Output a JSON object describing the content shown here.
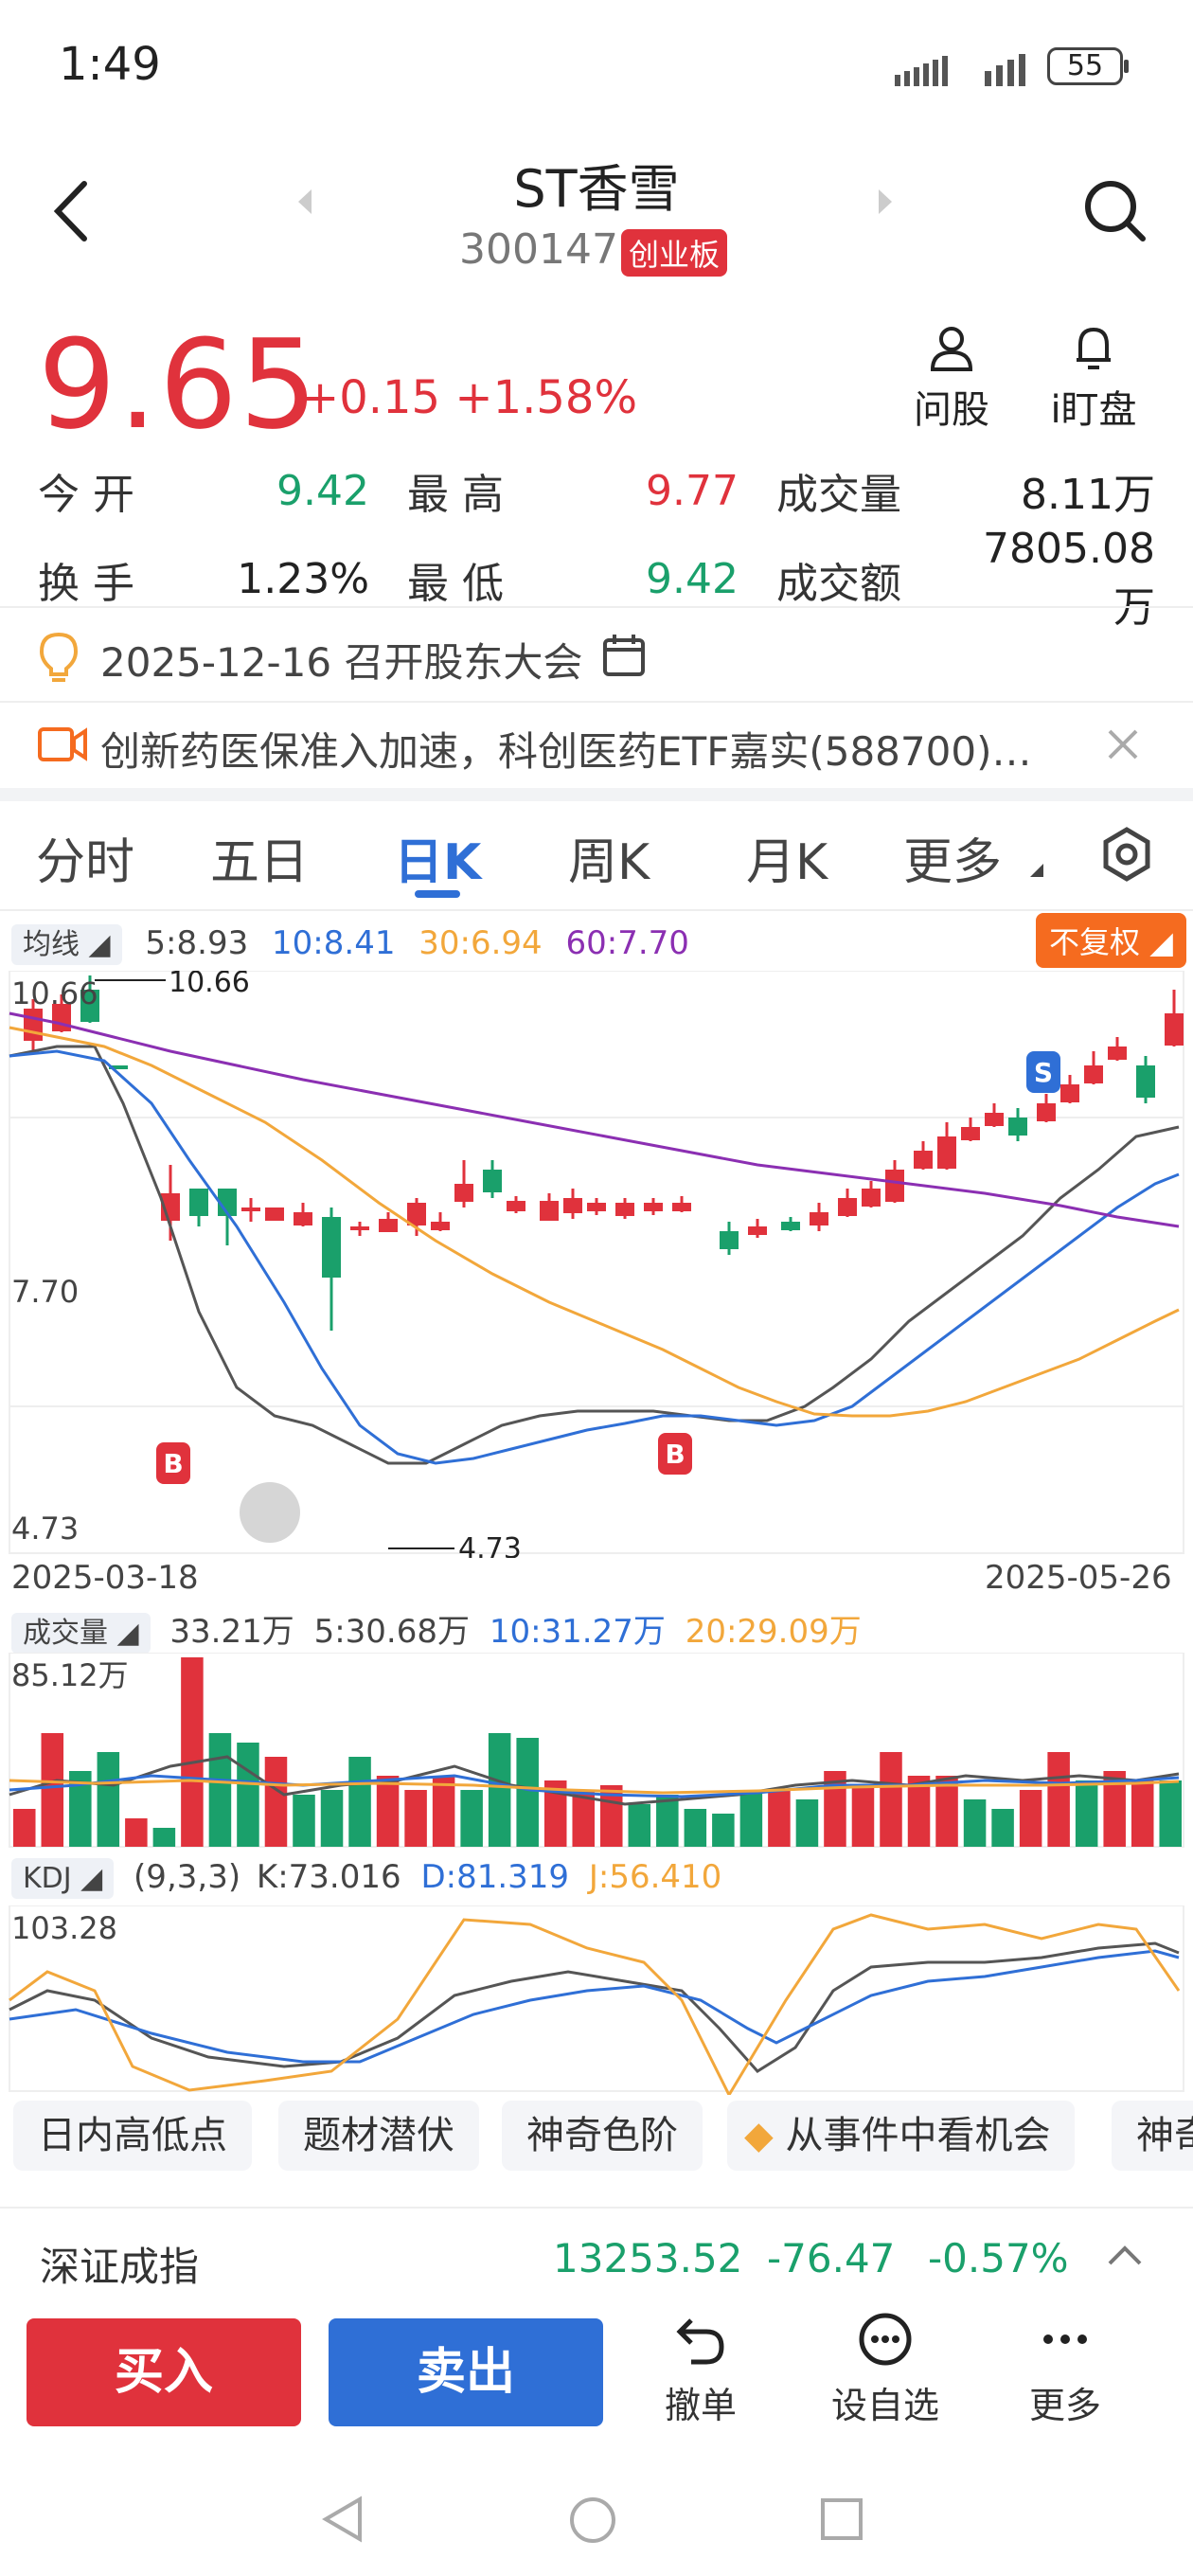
{
  "status": {
    "time": "1:49",
    "battery": "55"
  },
  "header": {
    "title": "ST香雪",
    "code": "300147",
    "board": "创业板"
  },
  "quote": {
    "price": "9.65",
    "change": "+0.15",
    "change_pct": "+1.58%"
  },
  "actions": {
    "ask": "问股",
    "watch": "i盯盘"
  },
  "stats": {
    "open_label": "今  开",
    "open": "9.42",
    "high_label": "最  高",
    "high": "9.77",
    "vol_label": "成交量",
    "vol": "8.11万",
    "turnover_label": "换  手",
    "turnover": "1.23%",
    "low_label": "最  低",
    "low": "9.42",
    "amount_label": "成交额",
    "amount": "7805.08万"
  },
  "event": {
    "text": "2025-12-16 召开股东大会"
  },
  "news": {
    "text": "创新药医保准入加速，科创医药ETF嘉实(588700)…"
  },
  "tabs": [
    "分时",
    "五日",
    "日K",
    "周K",
    "月K",
    "更多"
  ],
  "ma": {
    "label": "均线",
    "ma5": "5:8.93",
    "ma10": "10:8.41",
    "ma30": "30:6.94",
    "ma60": "60:7.70",
    "adjust": "不复权"
  },
  "kline": {
    "high_axis": "10.66",
    "mid_axis": "7.70",
    "low_axis": "4.73",
    "high_mark": "10.66",
    "low_mark": "4.73",
    "start_date": "2025-03-18",
    "end_date": "2025-05-26"
  },
  "volume": {
    "label": "成交量",
    "v": "33.21万",
    "ma5": "5:30.68万",
    "ma10": "10:31.27万",
    "ma20": "20:29.09万",
    "max_axis": "85.12万"
  },
  "kdj": {
    "label": "KDJ",
    "params": "(9,3,3)",
    "k": "K:73.016",
    "d": "D:81.319",
    "j": "J:56.410",
    "max_axis": "103.28"
  },
  "chips": [
    "日内高低点",
    "题材潜伏",
    "神奇色阶",
    "从事件中看机会",
    "神奇"
  ],
  "index": {
    "name": "深证成指",
    "value": "13253.52",
    "change": "-76.47",
    "pct": "-0.57%"
  },
  "bottom": {
    "buy": "买入",
    "sell": "卖出",
    "cancel": "撤单",
    "watchlist": "设自选",
    "more": "更多"
  },
  "colors": {
    "up": "#e0323c",
    "down": "#1aa06b",
    "accent": "#2f6fd6"
  }
}
